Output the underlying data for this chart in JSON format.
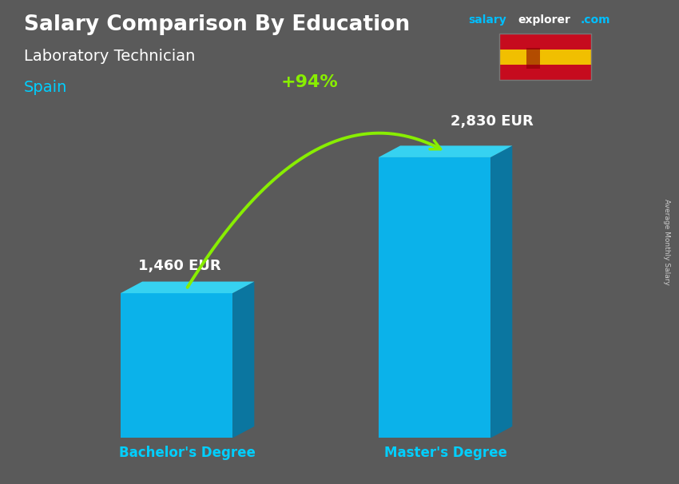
{
  "title": "Salary Comparison By Education",
  "subtitle": "Laboratory Technician",
  "country": "Spain",
  "categories": [
    "Bachelor's Degree",
    "Master's Degree"
  ],
  "values": [
    1460,
    2830
  ],
  "value_labels": [
    "1,460 EUR",
    "2,830 EUR"
  ],
  "pct_change": "+94%",
  "ylabel": "Average Monthly Salary",
  "bg_color": "#5a5a5a",
  "title_color": "#FFFFFF",
  "subtitle_color": "#FFFFFF",
  "country_color": "#00CFFF",
  "category_color": "#00CFFF",
  "value_color": "#FFFFFF",
  "pct_color": "#88EE00",
  "arrow_color": "#88EE00",
  "bar_front": "#00BFFF",
  "bar_right": "#007AAA",
  "bar_top": "#33DDFF",
  "flag_red": "#c60b1e",
  "flag_yellow": "#f1bf00",
  "site_salary_color": "#00BFFF",
  "site_explorer_color": "#FFFFFF",
  "site_com_color": "#00BFFF",
  "ylabel_color": "#CCCCCC"
}
